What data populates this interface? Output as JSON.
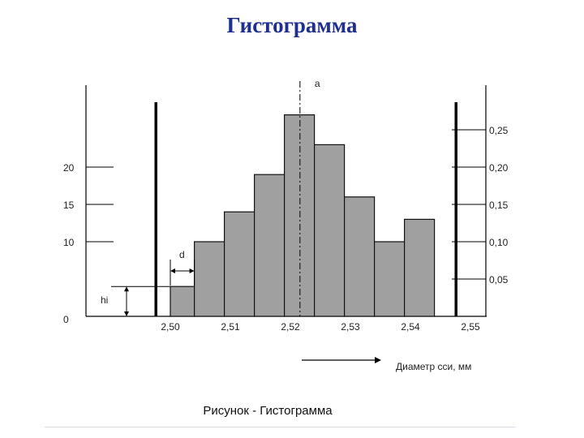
{
  "title": "Гистограмма",
  "caption": "Рисунок - Гистограмма",
  "colors": {
    "title": "#1f2f8f",
    "bar_fill": "#a0a0a0",
    "bar_stroke": "#111111",
    "axis": "#000000"
  },
  "chart_data": {
    "type": "bar",
    "xlabel": "Диаметр сси, мм",
    "x_ticks": [
      "2,50",
      "2,51",
      "2,52",
      "2,53",
      "2,54",
      "2,55"
    ],
    "x_tick_values": [
      2.5,
      2.51,
      2.52,
      2.53,
      2.54,
      2.55
    ],
    "bins": [
      {
        "from": 2.5,
        "to": 2.504,
        "value": 4
      },
      {
        "from": 2.504,
        "to": 2.509,
        "value": 10
      },
      {
        "from": 2.509,
        "to": 2.514,
        "value": 14
      },
      {
        "from": 2.514,
        "to": 2.519,
        "value": 19
      },
      {
        "from": 2.519,
        "to": 2.524,
        "value": 27
      },
      {
        "from": 2.524,
        "to": 2.529,
        "value": 23
      },
      {
        "from": 2.529,
        "to": 2.534,
        "value": 16
      },
      {
        "from": 2.534,
        "to": 2.539,
        "value": 10
      },
      {
        "from": 2.539,
        "to": 2.544,
        "value": 13
      }
    ],
    "left_axis_ticks": [
      {
        "label": "0",
        "value": 0
      },
      {
        "label": "10",
        "value": 10
      },
      {
        "label": "15",
        "value": 15
      },
      {
        "label": "20",
        "value": 20
      }
    ],
    "right_axis_ticks": [
      {
        "label": "0,05",
        "value": 5
      },
      {
        "label": "0,10",
        "value": 10
      },
      {
        "label": "0,15",
        "value": 15
      },
      {
        "label": "0,20",
        "value": 20
      },
      {
        "label": "0,25",
        "value": 25
      }
    ],
    "limit_lines": [
      2.4976,
      2.5476
    ],
    "center_line": {
      "label": "a",
      "value": 2.5216
    },
    "annotations": {
      "bin_width": "d",
      "frequency": "hi"
    }
  }
}
